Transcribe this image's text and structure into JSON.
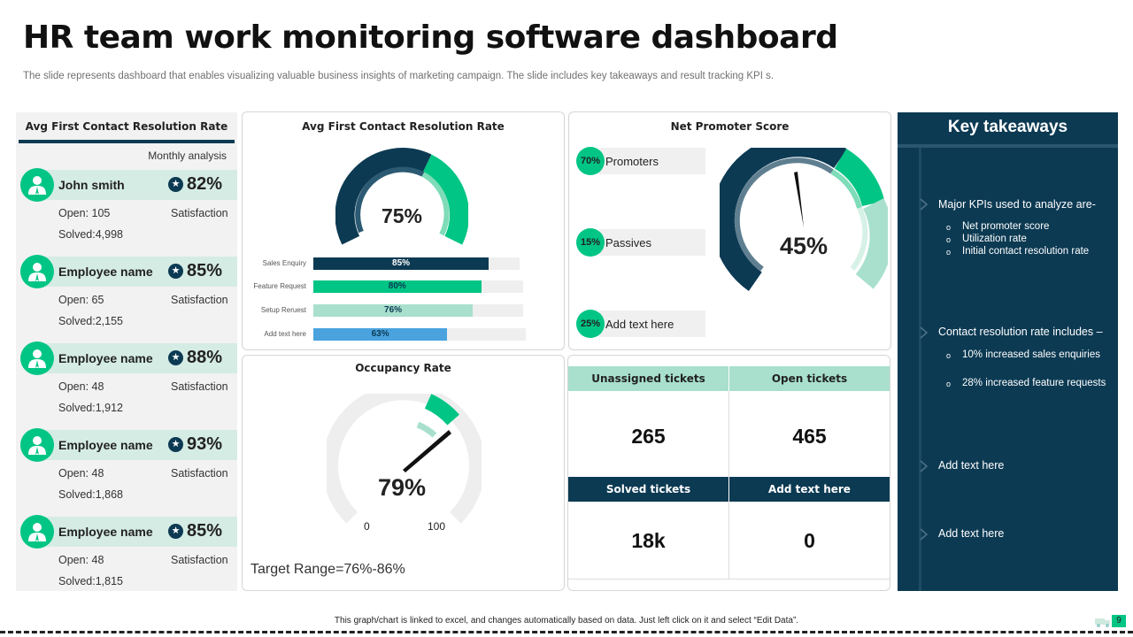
{
  "title": "HR team work monitoring software dashboard",
  "subtitle": "The slide represents dashboard that enables visualizing valuable business insights of marketing campaign. The slide includes key takeaways and result tracking KPI s.",
  "left_panel": {
    "header": "Avg First Contact Resolution Rate",
    "monthly": "Monthly analysis",
    "employees": [
      {
        "name": "John smith",
        "pct": "82%",
        "open": "Open: 105",
        "solved": "Solved:4,998",
        "sat": "Satisfaction"
      },
      {
        "name": "Employee name",
        "pct": "85%",
        "open": "Open: 65",
        "solved": "Solved:2,155",
        "sat": "Satisfaction"
      },
      {
        "name": "Employee name",
        "pct": "88%",
        "open": "Open: 48",
        "solved": "Solved:1,912",
        "sat": "Satisfaction"
      },
      {
        "name": "Employee name",
        "pct": "93%",
        "open": "Open: 48",
        "solved": "Solved:1,868",
        "sat": "Satisfaction"
      },
      {
        "name": "Employee name",
        "pct": "85%",
        "open": "Open: 48",
        "solved": "Solved:1,815",
        "sat": "Satisfaction"
      }
    ]
  },
  "resolution": {
    "title": "Avg First Contact Resolution Rate",
    "value": "75%",
    "bars": [
      {
        "label": "Sales Enquiry",
        "value": 85,
        "text": "85%",
        "color": "#0c3a53",
        "text_color": "#ffffff"
      },
      {
        "label": "Feature Request",
        "value": 80,
        "text": "80%",
        "color": "#00c584",
        "text_color": "#0c3a53"
      },
      {
        "label": "Setup Reruest",
        "value": 76,
        "text": "76%",
        "color": "#a8e0cd",
        "text_color": "#0c3a53"
      },
      {
        "label": "Add text here",
        "value": 63,
        "text": "63%",
        "color": "#4aa3df",
        "text_color": "#0c3a53"
      }
    ]
  },
  "nps": {
    "title": "Net Promoter Score",
    "value": "45%",
    "items": [
      {
        "pct": "70%",
        "label": "Promoters"
      },
      {
        "pct": "15%",
        "label": "Passives"
      },
      {
        "pct": "25%",
        "label": "Add text here"
      }
    ]
  },
  "occupancy": {
    "title": "Occupancy Rate",
    "value": "79%",
    "min": "0",
    "max": "100",
    "target": "Target Range=76%-86%"
  },
  "tickets": {
    "unassigned_label": "Unassigned tickets",
    "unassigned": "265",
    "open_label": "Open tickets",
    "open": "465",
    "solved_label": "Solved tickets",
    "solved": "18k",
    "other_label": "Add text here",
    "other": "0"
  },
  "takeaways": {
    "title": "Key takeaways",
    "point1": "Major KPIs used to analyze are-",
    "point1_subs": [
      "Net promoter score",
      "Utilization rate",
      "Initial contact resolution rate"
    ],
    "point2": "Contact resolution rate includes –",
    "point2_subs": [
      "10% increased sales enquiries",
      "28%  increased feature requests"
    ],
    "point3": "Add text here",
    "point4": "Add text here"
  },
  "footer": "This graph/chart is linked to excel, and changes automatically based on data. Just left click on it and select “Edit Data”.",
  "page_number": "9"
}
